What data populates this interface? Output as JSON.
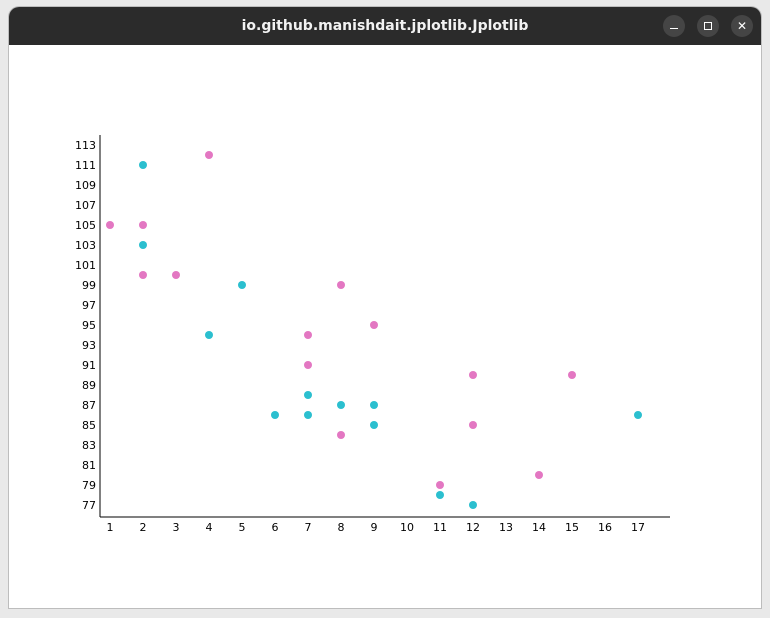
{
  "window": {
    "title": "io.github.manishdait.jplotlib.Jplotlib"
  },
  "chart_data": {
    "type": "scatter",
    "title": "",
    "xlabel": "",
    "ylabel": "",
    "xlim": [
      1,
      17
    ],
    "ylim": [
      77,
      113
    ],
    "xticks": [
      1,
      2,
      3,
      4,
      5,
      6,
      7,
      8,
      9,
      10,
      11,
      12,
      13,
      14,
      15,
      16,
      17
    ],
    "yticks": [
      77,
      79,
      81,
      83,
      85,
      87,
      89,
      91,
      93,
      95,
      97,
      99,
      101,
      103,
      105,
      107,
      109,
      111,
      113
    ],
    "grid": false,
    "series": [
      {
        "color": "#2bbfcf",
        "points": [
          {
            "x": 2,
            "y": 111
          },
          {
            "x": 2,
            "y": 103
          },
          {
            "x": 4,
            "y": 94
          },
          {
            "x": 5,
            "y": 99
          },
          {
            "x": 6,
            "y": 86
          },
          {
            "x": 7,
            "y": 88
          },
          {
            "x": 7,
            "y": 86
          },
          {
            "x": 8,
            "y": 87
          },
          {
            "x": 9,
            "y": 87
          },
          {
            "x": 9,
            "y": 85
          },
          {
            "x": 11,
            "y": 78
          },
          {
            "x": 12,
            "y": 77
          },
          {
            "x": 17,
            "y": 86
          }
        ]
      },
      {
        "color": "#e377c2",
        "points": [
          {
            "x": 1,
            "y": 105
          },
          {
            "x": 2,
            "y": 105
          },
          {
            "x": 2,
            "y": 100
          },
          {
            "x": 3,
            "y": 100
          },
          {
            "x": 4,
            "y": 112
          },
          {
            "x": 7,
            "y": 94
          },
          {
            "x": 7,
            "y": 91
          },
          {
            "x": 8,
            "y": 99
          },
          {
            "x": 8,
            "y": 84
          },
          {
            "x": 9,
            "y": 95
          },
          {
            "x": 11,
            "y": 79
          },
          {
            "x": 12,
            "y": 90
          },
          {
            "x": 12,
            "y": 85
          },
          {
            "x": 14,
            "y": 80
          },
          {
            "x": 15,
            "y": 90
          }
        ]
      }
    ]
  }
}
